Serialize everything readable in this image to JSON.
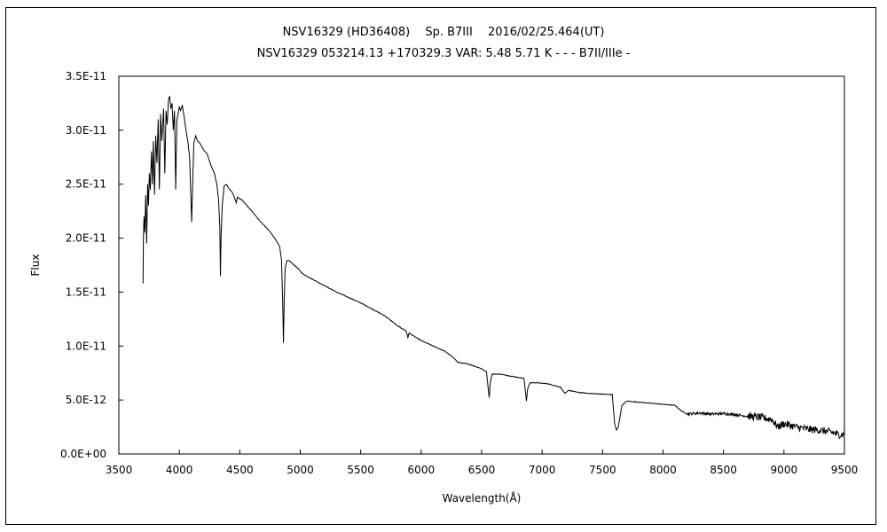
{
  "chart_data": {
    "type": "line",
    "title": "NSV16329 (HD36408)　 Sp. B7III　 2016/02/25.464(UT)",
    "subtitle": "NSV16329 053214.13 +170329.3 VAR: 5.48 5.71 K - - - B7II/IIIe -",
    "xlabel": "Wavelength(Å)",
    "ylabel": "Flux",
    "xlim": [
      3500,
      9500
    ],
    "ylim": [
      0,
      3.5e-11
    ],
    "x_ticks": [
      "3500",
      "4000",
      "4500",
      "5000",
      "5500",
      "6000",
      "6500",
      "7000",
      "7500",
      "8000",
      "8500",
      "9000",
      "9500"
    ],
    "y_ticks": [
      "0.0E+00",
      "5.0E-12",
      "1.0E-11",
      "1.5E-11",
      "2.0E-11",
      "2.5E-11",
      "3.0E-11",
      "3.5E-11"
    ],
    "grid": false,
    "legend": "none",
    "series": [
      {
        "color": "#000000",
        "points": [
          [
            3700,
            1.58e-11
          ],
          [
            3703,
            2e-11
          ],
          [
            3708,
            2.2e-11
          ],
          [
            3715,
            2.05e-11
          ],
          [
            3722,
            2.4e-11
          ],
          [
            3730,
            1.95e-11
          ],
          [
            3738,
            2.5e-11
          ],
          [
            3745,
            2.3e-11
          ],
          [
            3752,
            2.6e-11
          ],
          [
            3760,
            2.45e-11
          ],
          [
            3770,
            2.8e-11
          ],
          [
            3778,
            2.5e-11
          ],
          [
            3785,
            2.9e-11
          ],
          [
            3795,
            2.4e-11
          ],
          [
            3805,
            2.95e-11
          ],
          [
            3815,
            2.7e-11
          ],
          [
            3825,
            3.1e-11
          ],
          [
            3835,
            2.45e-11
          ],
          [
            3845,
            3.15e-11
          ],
          [
            3855,
            2.9e-11
          ],
          [
            3870,
            3.2e-11
          ],
          [
            3880,
            2.6e-11
          ],
          [
            3890,
            3.18e-11
          ],
          [
            3900,
            3.05e-11
          ],
          [
            3910,
            3.28e-11
          ],
          [
            3920,
            3.32e-11
          ],
          [
            3930,
            3.2e-11
          ],
          [
            3940,
            3.25e-11
          ],
          [
            3950,
            3e-11
          ],
          [
            3960,
            3.18e-11
          ],
          [
            3970,
            2.45e-11
          ],
          [
            3980,
            3.1e-11
          ],
          [
            3990,
            3.15e-11
          ],
          [
            4000,
            3.22e-11
          ],
          [
            4010,
            3.18e-11
          ],
          [
            4025,
            3.23e-11
          ],
          [
            4040,
            3.12e-11
          ],
          [
            4055,
            3e-11
          ],
          [
            4070,
            2.9e-11
          ],
          [
            4085,
            2.75e-11
          ],
          [
            4095,
            2.4e-11
          ],
          [
            4102,
            2.15e-11
          ],
          [
            4110,
            2.5e-11
          ],
          [
            4120,
            2.88e-11
          ],
          [
            4135,
            2.95e-11
          ],
          [
            4150,
            2.9e-11
          ],
          [
            4170,
            2.88e-11
          ],
          [
            4200,
            2.82e-11
          ],
          [
            4230,
            2.78e-11
          ],
          [
            4260,
            2.68e-11
          ],
          [
            4290,
            2.6e-11
          ],
          [
            4310,
            2.5e-11
          ],
          [
            4325,
            2.35e-11
          ],
          [
            4335,
            2.1e-11
          ],
          [
            4340,
            1.65e-11
          ],
          [
            4345,
            2e-11
          ],
          [
            4355,
            2.3e-11
          ],
          [
            4370,
            2.48e-11
          ],
          [
            4390,
            2.5e-11
          ],
          [
            4410,
            2.46e-11
          ],
          [
            4440,
            2.42e-11
          ],
          [
            4471,
            2.33e-11
          ],
          [
            4480,
            2.38e-11
          ],
          [
            4520,
            2.35e-11
          ],
          [
            4560,
            2.3e-11
          ],
          [
            4600,
            2.25e-11
          ],
          [
            4650,
            2.18e-11
          ],
          [
            4700,
            2.12e-11
          ],
          [
            4750,
            2.06e-11
          ],
          [
            4800,
            1.98e-11
          ],
          [
            4830,
            1.92e-11
          ],
          [
            4845,
            1.8e-11
          ],
          [
            4855,
            1.4e-11
          ],
          [
            4861,
            1.03e-11
          ],
          [
            4867,
            1.4e-11
          ],
          [
            4875,
            1.72e-11
          ],
          [
            4890,
            1.79e-11
          ],
          [
            4910,
            1.79e-11
          ],
          [
            4940,
            1.76e-11
          ],
          [
            4980,
            1.72e-11
          ],
          [
            5020,
            1.67e-11
          ],
          [
            5100,
            1.62e-11
          ],
          [
            5200,
            1.56e-11
          ],
          [
            5300,
            1.5e-11
          ],
          [
            5400,
            1.45e-11
          ],
          [
            5500,
            1.4e-11
          ],
          [
            5600,
            1.34e-11
          ],
          [
            5700,
            1.28e-11
          ],
          [
            5780,
            1.21e-11
          ],
          [
            5800,
            1.19e-11
          ],
          [
            5875,
            1.14e-11
          ],
          [
            5890,
            1.08e-11
          ],
          [
            5900,
            1.12e-11
          ],
          [
            6000,
            1.05e-11
          ],
          [
            6100,
            1e-11
          ],
          [
            6200,
            9.5e-12
          ],
          [
            6280,
            8.8e-12
          ],
          [
            6300,
            8.5e-12
          ],
          [
            6400,
            8.3e-12
          ],
          [
            6500,
            7.9e-12
          ],
          [
            6540,
            7.6e-12
          ],
          [
            6555,
            6e-12
          ],
          [
            6563,
            5.2e-12
          ],
          [
            6570,
            6.5e-12
          ],
          [
            6585,
            7.4e-12
          ],
          [
            6650,
            7.4e-12
          ],
          [
            6750,
            7.2e-12
          ],
          [
            6850,
            7e-12
          ],
          [
            6865,
            5.5e-12
          ],
          [
            6870,
            4.9e-12
          ],
          [
            6880,
            6e-12
          ],
          [
            6900,
            6.6e-12
          ],
          [
            6950,
            6.6e-12
          ],
          [
            7050,
            6.5e-12
          ],
          [
            7150,
            6.2e-12
          ],
          [
            7190,
            5.6e-12
          ],
          [
            7220,
            5.9e-12
          ],
          [
            7300,
            5.7e-12
          ],
          [
            7400,
            5.6e-12
          ],
          [
            7500,
            5.55e-12
          ],
          [
            7580,
            5.5e-12
          ],
          [
            7600,
            2.8e-12
          ],
          [
            7615,
            2.2e-12
          ],
          [
            7630,
            2.5e-12
          ],
          [
            7660,
            4.5e-12
          ],
          [
            7700,
            4.9e-12
          ],
          [
            7800,
            4.8e-12
          ],
          [
            7900,
            4.7e-12
          ],
          [
            8000,
            4.6e-12
          ],
          [
            8100,
            4.5e-12
          ],
          [
            8150,
            4e-12
          ],
          [
            8200,
            3.7e-12
          ],
          [
            8300,
            3.8e-12
          ],
          [
            8400,
            3.7e-12
          ],
          [
            8500,
            3.75e-12
          ],
          [
            8600,
            3.65e-12
          ],
          [
            8700,
            3.5e-12
          ],
          [
            8800,
            3.4e-12
          ],
          [
            8900,
            3.2e-12
          ],
          [
            8950,
            2.5e-12
          ],
          [
            9000,
            2.8e-12
          ],
          [
            9100,
            2.5e-12
          ],
          [
            9200,
            2.3e-12
          ],
          [
            9300,
            2.2e-12
          ],
          [
            9400,
            2e-12
          ],
          [
            9450,
            1.8e-12
          ],
          [
            9500,
            1.8e-12
          ]
        ]
      }
    ]
  }
}
